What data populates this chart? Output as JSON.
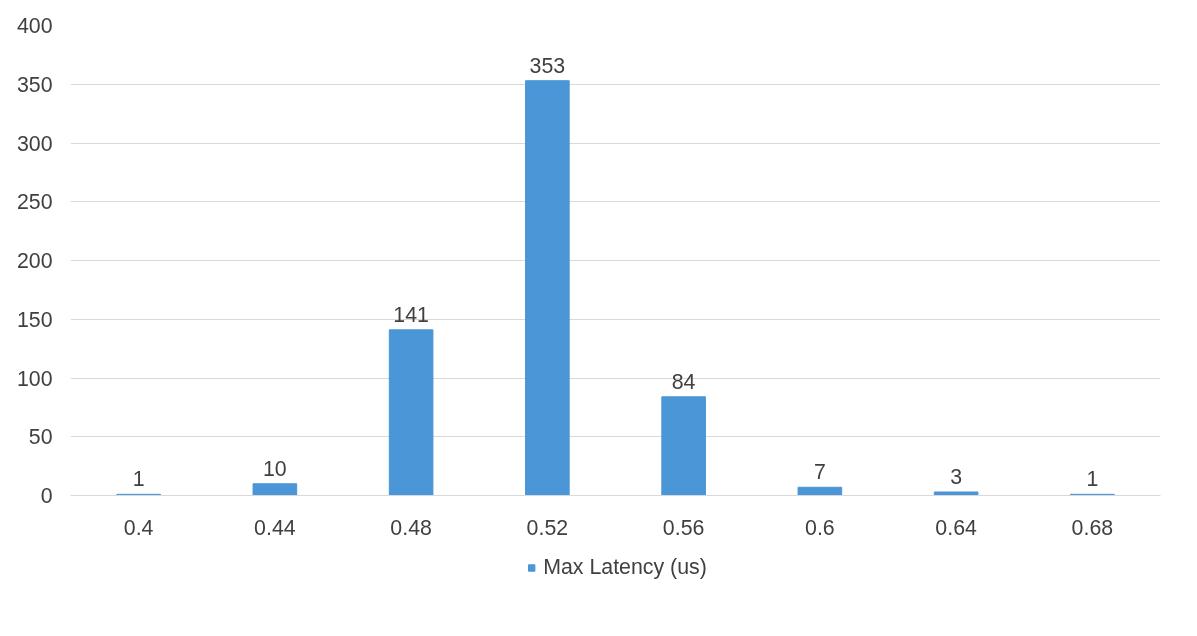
{
  "chart_data": {
    "type": "bar",
    "categories": [
      "0.4",
      "0.44",
      "0.48",
      "0.52",
      "0.56",
      "0.6",
      "0.64",
      "0.68"
    ],
    "series": [
      {
        "name": "Max Latency (us)",
        "color": "#4a96d6",
        "values": [
          1,
          10,
          141,
          353,
          84,
          7,
          3,
          1
        ]
      }
    ],
    "ylim": [
      0,
      400
    ],
    "yticks": [
      0,
      50,
      100,
      150,
      200,
      250,
      300,
      350,
      400
    ],
    "grid": "y",
    "legend": "bottom",
    "data_labels": true
  }
}
